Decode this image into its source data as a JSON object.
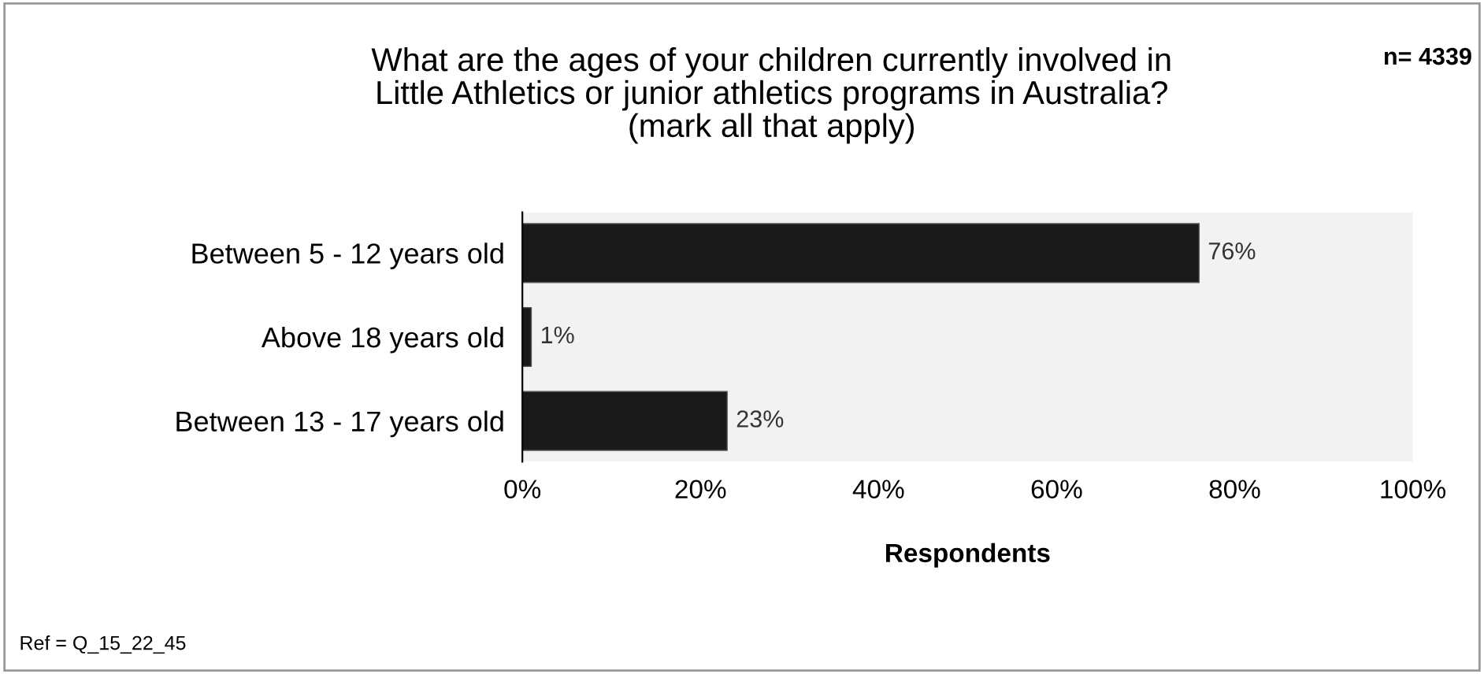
{
  "chart_data": {
    "type": "bar",
    "orientation": "horizontal",
    "title": "What are the ages of your children currently involved in\nLittle Athletics or junior athletics programs in Australia?\n(mark all that apply)",
    "categories": [
      "Between 5 - 12 years old",
      "Above 18 years old",
      "Between 13 - 17 years old"
    ],
    "values": [
      76,
      1,
      23
    ],
    "value_labels": [
      "76%",
      "1%",
      "23%"
    ],
    "color": "#1a1a1a",
    "xlim": [
      0,
      100
    ],
    "xticks": [
      {
        "value": 0,
        "label": "0%"
      },
      {
        "value": 20,
        "label": "20%"
      },
      {
        "value": 40,
        "label": "40%"
      },
      {
        "value": 60,
        "label": "60%"
      },
      {
        "value": 80,
        "label": "80%"
      },
      {
        "value": 100,
        "label": "100%"
      }
    ],
    "xlabel": "Respondents",
    "annotations": [
      "n= 4339",
      "Ref = Q_15_22_45"
    ],
    "grid": false,
    "legend": false
  }
}
